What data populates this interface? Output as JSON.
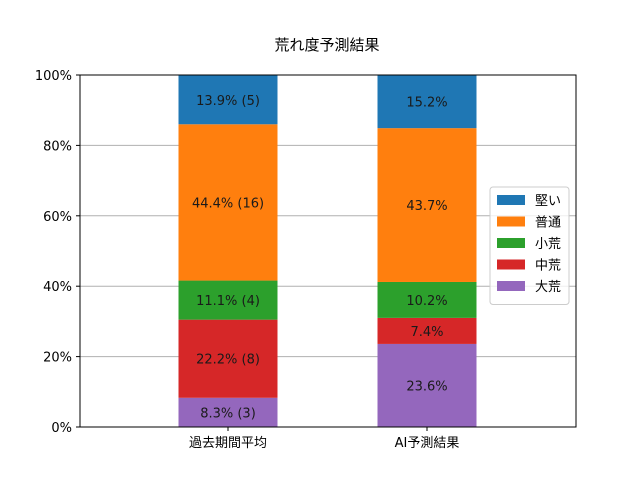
{
  "chart_data": {
    "type": "bar",
    "stacked": true,
    "title": "荒れ度予測結果",
    "xlabel": "",
    "ylabel": "",
    "ylim": [
      0,
      100
    ],
    "y_tick_labels": [
      "0%",
      "20%",
      "40%",
      "60%",
      "80%",
      "100%"
    ],
    "y_tick_values": [
      0,
      20,
      40,
      60,
      80,
      100
    ],
    "grid": "y",
    "legend_position": "center-right",
    "categories": [
      "過去期間平均",
      "AI予測結果"
    ],
    "series": [
      {
        "name": "大荒",
        "color": "#9467bd",
        "values": [
          8.3,
          23.6
        ],
        "labels": [
          "8.3% (3)",
          "23.6%"
        ]
      },
      {
        "name": "中荒",
        "color": "#d62728",
        "values": [
          22.2,
          7.4
        ],
        "labels": [
          "22.2% (8)",
          "7.4%"
        ]
      },
      {
        "name": "小荒",
        "color": "#2ca02c",
        "values": [
          11.1,
          10.2
        ],
        "labels": [
          "11.1% (4)",
          "10.2%"
        ]
      },
      {
        "name": "普通",
        "color": "#ff7f0e",
        "values": [
          44.4,
          43.7
        ],
        "labels": [
          "44.4% (16)",
          "43.7%"
        ]
      },
      {
        "name": "堅い",
        "color": "#1f77b4",
        "values": [
          13.9,
          15.2
        ],
        "labels": [
          "13.9% (5)",
          "15.2%"
        ]
      }
    ],
    "legend_order": [
      "堅い",
      "普通",
      "小荒",
      "中荒",
      "大荒"
    ]
  }
}
